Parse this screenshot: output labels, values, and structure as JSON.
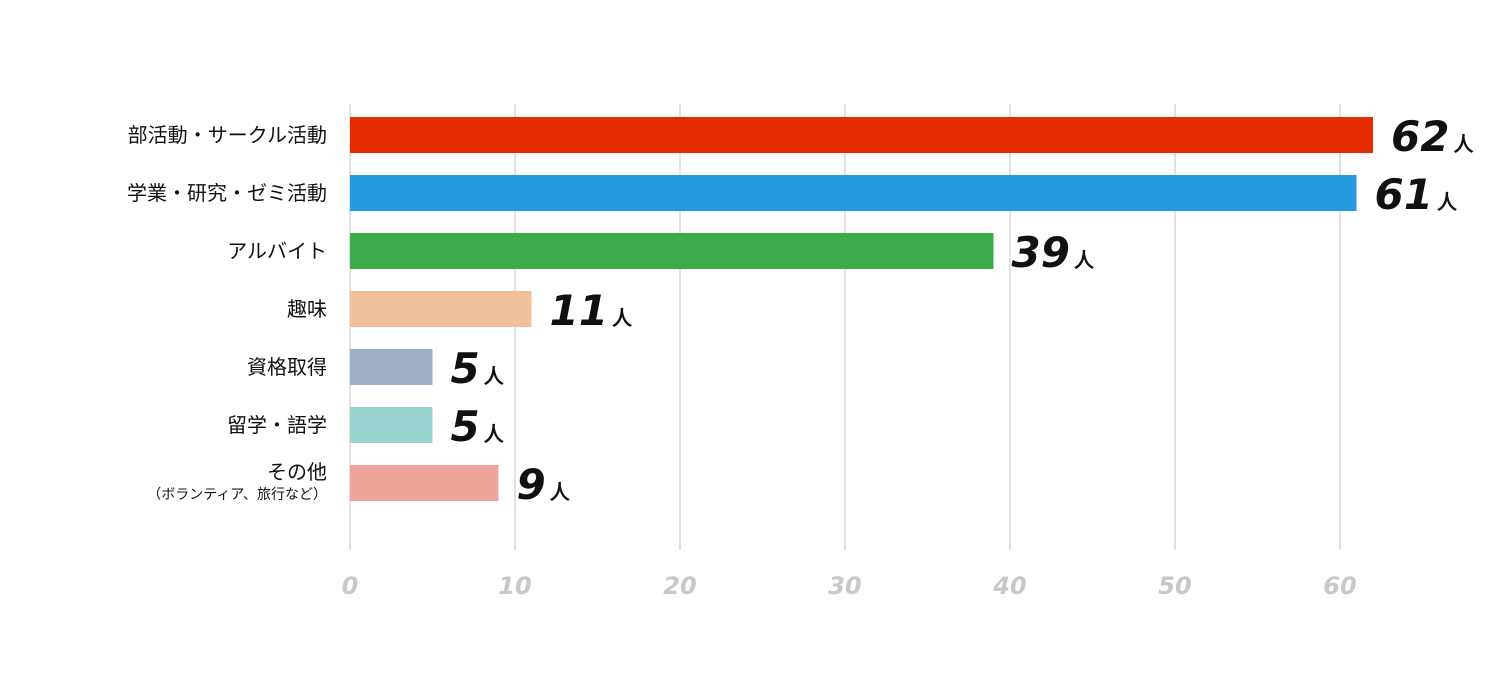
{
  "chart_data": {
    "type": "bar",
    "orientation": "horizontal",
    "categories": [
      "部活動・サークル活動",
      "学業・研究・ゼミ活動",
      "アルバイト",
      "趣味",
      "資格取得",
      "留学・語学",
      "その他"
    ],
    "category_sublabels": [
      "",
      "",
      "",
      "",
      "",
      "",
      "（ボランティア、旅行など）"
    ],
    "values": [
      62,
      61,
      39,
      11,
      5,
      5,
      9
    ],
    "value_unit": "人",
    "colors": [
      "#e52d00",
      "#2499dd",
      "#3cac4b",
      "#f2c09a",
      "#9eafc6",
      "#99d4d1",
      "#f1a49c"
    ],
    "xlim": [
      0,
      60
    ],
    "xticks": [
      0,
      10,
      20,
      30,
      40,
      50,
      60
    ],
    "grid": true,
    "grid_color": "#d9d9d9",
    "title": "",
    "xlabel": "",
    "ylabel": ""
  }
}
